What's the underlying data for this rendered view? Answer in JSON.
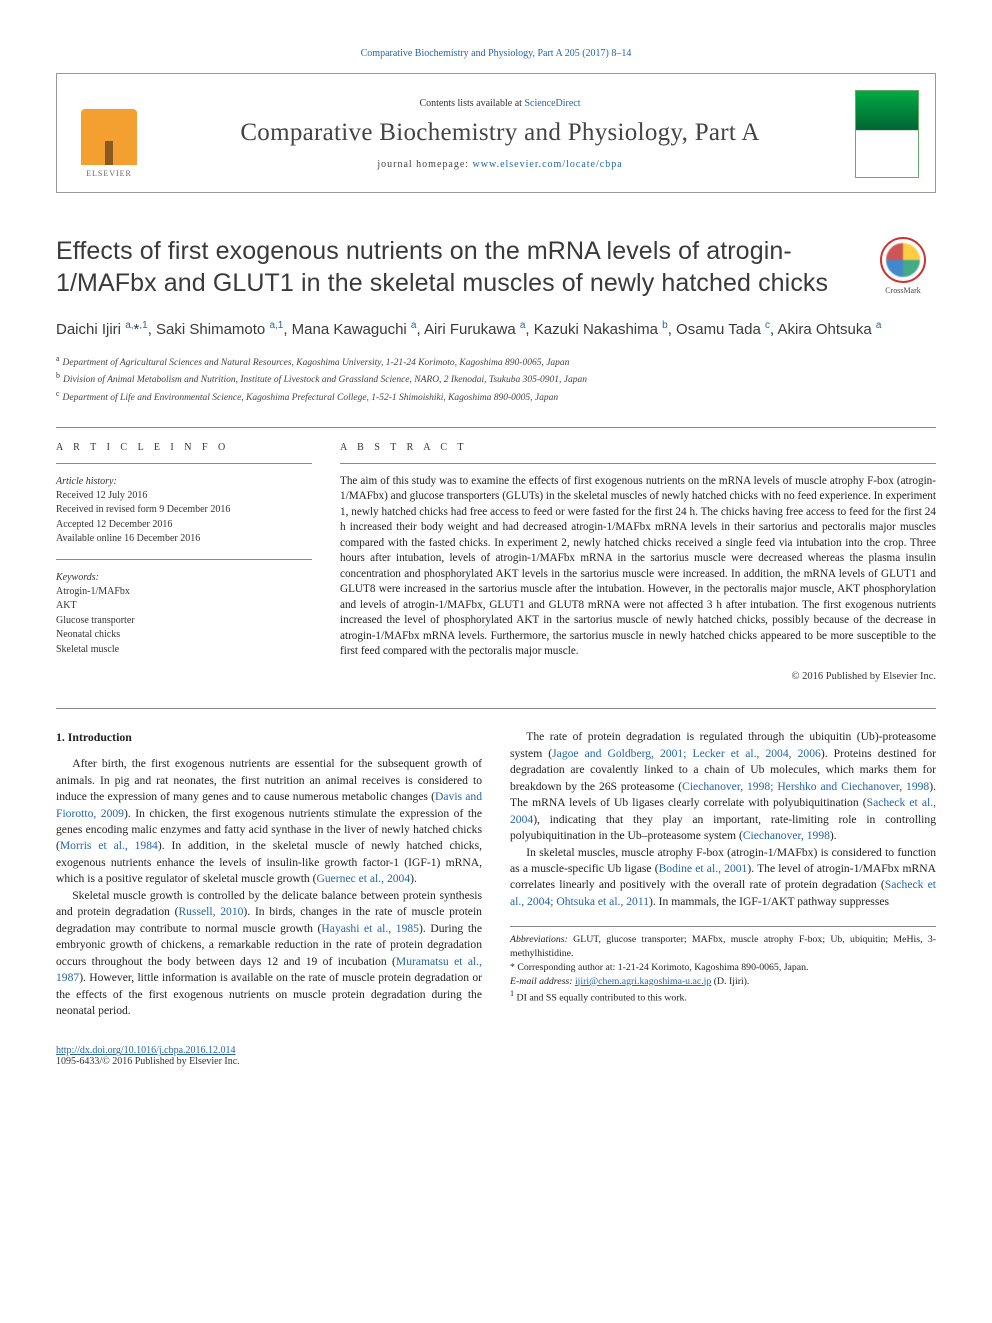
{
  "top_citation": "Comparative Biochemistry and Physiology, Part A 205 (2017) 8–14",
  "header": {
    "contents_text": "Contents lists available at ",
    "contents_link": "ScienceDirect",
    "journal": "Comparative Biochemistry and Physiology, Part A",
    "homepage_label": "journal homepage: ",
    "homepage_url": "www.elsevier.com/locate/cbpa",
    "publisher": "ELSEVIER"
  },
  "crossmark_label": "CrossMark",
  "article_title": "Effects of first exogenous nutrients on the mRNA levels of atrogin-1/MAFbx and GLUT1 in the skeletal muscles of newly hatched chicks",
  "authors_html": "Daichi Ijiri <sup>a,</sup>*<sup>,1</sup>, Saki Shimamoto <sup>a,1</sup>, Mana Kawaguchi <sup>a</sup>, Airi Furukawa <sup>a</sup>, Kazuki Nakashima <sup>b</sup>, Osamu Tada <sup>c</sup>, Akira Ohtsuka <sup>a</sup>",
  "affils": {
    "a": "Department of Agricultural Sciences and Natural Resources, Kagoshima University, 1-21-24 Korimoto, Kagoshima 890-0065, Japan",
    "b": "Division of Animal Metabolism and Nutrition, Institute of Livestock and Grassland Science, NARO, 2 Ikenodai, Tsukuba 305-0901, Japan",
    "c": "Department of Life and Environmental Science, Kagoshima Prefectural College, 1-52-1 Shimoishiki, Kagoshima 890-0005, Japan"
  },
  "meta": {
    "info_heading": "a r t i c l e   i n f o",
    "history_label": "Article history:",
    "history": [
      "Received 12 July 2016",
      "Received in revised form 9 December 2016",
      "Accepted 12 December 2016",
      "Available online 16 December 2016"
    ],
    "keywords_label": "Keywords:",
    "keywords": [
      "Atrogin-1/MAFbx",
      "AKT",
      "Glucose transporter",
      "Neonatal chicks",
      "Skeletal muscle"
    ]
  },
  "abstract": {
    "heading": "a b s t r a c t",
    "text": "The aim of this study was to examine the effects of first exogenous nutrients on the mRNA levels of muscle atrophy F-box (atrogin-1/MAFbx) and glucose transporters (GLUTs) in the skeletal muscles of newly hatched chicks with no feed experience. In experiment 1, newly hatched chicks had free access to feed or were fasted for the first 24 h. The chicks having free access to feed for the first 24 h increased their body weight and had decreased atrogin-1/MAFbx mRNA levels in their sartorius and pectoralis major muscles compared with the fasted chicks. In experiment 2, newly hatched chicks received a single feed via intubation into the crop. Three hours after intubation, levels of atrogin-1/MAFbx mRNA in the sartorius muscle were decreased whereas the plasma insulin concentration and phosphorylated AKT levels in the sartorius muscle were increased. In addition, the mRNA levels of GLUT1 and GLUT8 were increased in the sartorius muscle after the intubation. However, in the pectoralis major muscle, AKT phosphorylation and levels of atrogin-1/MAFbx, GLUT1 and GLUT8 mRNA were not affected 3 h after intubation. The first exogenous nutrients increased the level of phosphorylated AKT in the sartorius muscle of newly hatched chicks, possibly because of the decrease in atrogin-1/MAFbx mRNA levels. Furthermore, the sartorius muscle in newly hatched chicks appeared to be more susceptible to the first feed compared with the pectoralis major muscle.",
    "copyright": "© 2016 Published by Elsevier Inc."
  },
  "body": {
    "section_heading": "1. Introduction",
    "p1_a": "After birth, the first exogenous nutrients are essential for the subsequent growth of animals. In pig and rat neonates, the first nutrition an animal receives is considered to induce the expression of many genes and to cause numerous metabolic changes (",
    "p1_c1": "Davis and Fiorotto, 2009",
    "p1_b": "). In chicken, the first exogenous nutrients stimulate the expression of the genes encoding malic enzymes and fatty acid synthase in the liver of newly hatched chicks (",
    "p1_c2": "Morris et al., 1984",
    "p1_c": "). In addition, in the skeletal muscle of newly hatched chicks, exogenous nutrients enhance the levels of insulin-like growth factor-1 (IGF-1) mRNA, which is a positive regulator of skeletal muscle growth (",
    "p1_c3": "Guernec et al., 2004",
    "p1_d": ").",
    "p2_a": "Skeletal muscle growth is controlled by the delicate balance between protein synthesis and protein degradation (",
    "p2_c1": "Russell, 2010",
    "p2_b": "). In birds, changes in the rate of muscle protein degradation may contribute ",
    "p2_c": "to normal muscle growth (",
    "p2_c2": "Hayashi et al., 1985",
    "p2_d": "). During the embryonic growth of chickens, a remarkable reduction in the rate of protein degradation occurs throughout the body between days 12 and 19 of incubation (",
    "p2_c3": "Muramatsu et al., 1987",
    "p2_e": "). However, little information is available on the rate of muscle protein degradation or the effects of the first exogenous nutrients on muscle protein degradation during the neonatal period.",
    "p3_a": "The rate of protein degradation is regulated through the ubiquitin (Ub)-proteasome system (",
    "p3_c1": "Jagoe and Goldberg, 2001; Lecker et al., 2004, 2006",
    "p3_b": "). Proteins destined for degradation are covalently linked to a chain of Ub molecules, which marks them for breakdown by the 26S proteasome (",
    "p3_c2": "Ciechanover, 1998; Hershko and Ciechanover, 1998",
    "p3_c": "). The mRNA levels of Ub ligases clearly correlate with polyubiquitination (",
    "p3_c3": "Sacheck et al., 2004",
    "p3_d": "), indicating that they play an important, rate-limiting role in controlling polyubiquitination in the Ub–proteasome system (",
    "p3_c4": "Ciechanover, 1998",
    "p3_e": ").",
    "p4_a": "In skeletal muscles, muscle atrophy F-box (atrogin-1/MAFbx) is considered to function as a muscle-specific Ub ligase (",
    "p4_c1": "Bodine et al., 2001",
    "p4_b": "). The level of atrogin-1/MAFbx mRNA correlates linearly and positively with the overall rate of protein degradation (",
    "p4_c2": "Sacheck et al., 2004; Ohtsuka et al., 2011",
    "p4_c": "). In mammals, the IGF-1/AKT pathway suppresses"
  },
  "footnotes": {
    "abbrev_label": "Abbreviations:",
    "abbrev_text": " GLUT, glucose transporter; MAFbx, muscle atrophy F-box; Ub, ubiquitin; MeHis, 3-methylhistidine.",
    "corr_label": "* Corresponding author at: ",
    "corr_text": "1-21-24 Korimoto, Kagoshima 890-0065, Japan.",
    "email_label": "E-mail address: ",
    "email": "ijiri@chem.agri.kagoshima-u.ac.jp",
    "email_suffix": " (D. Ijiri).",
    "contrib_label": "1",
    "contrib_text": " DI and SS equally contributed to this work."
  },
  "footer": {
    "doi": "http://dx.doi.org/10.1016/j.cbpa.2016.12.014",
    "issn_line": "1095-6433/© 2016 Published by Elsevier Inc."
  }
}
